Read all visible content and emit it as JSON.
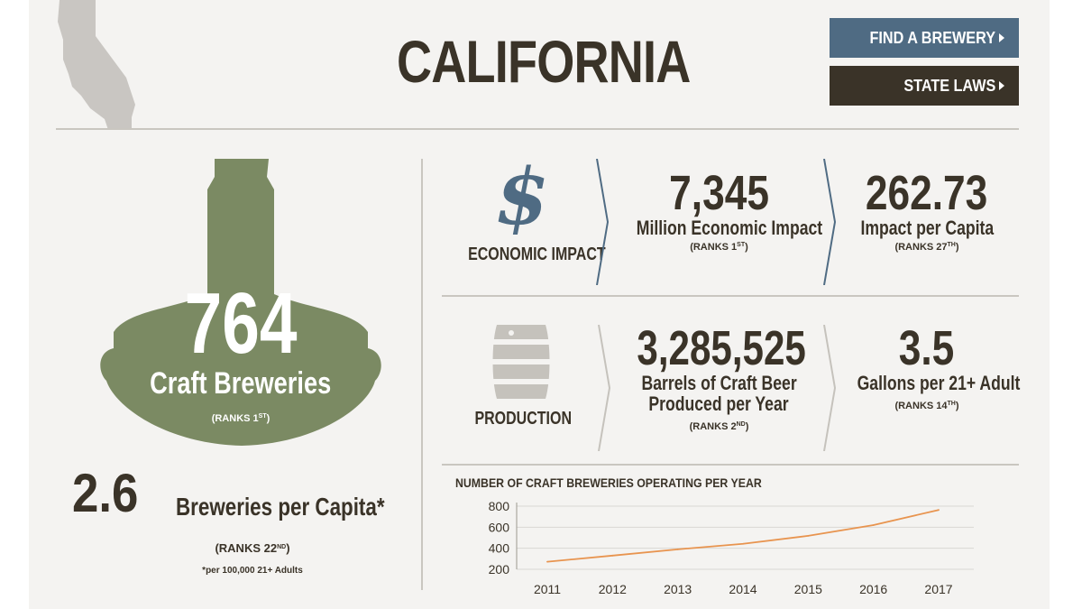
{
  "header": {
    "title": "CALIFORNIA",
    "find_button": "FIND A BREWERY",
    "laws_button": "STATE LAWS"
  },
  "breweries": {
    "count": "764",
    "label": "Craft Breweries",
    "rank_prefix": "(RANKS 1",
    "rank_suffix": "ST",
    "rank_close": ")",
    "per_capita": "2.6",
    "per_capita_label": "Breweries per Capita*",
    "per_capita_rank_prefix": "(RANKS 22",
    "per_capita_rank_suffix": "ND",
    "per_capita_rank_close": ")",
    "footnote": "*per 100,000 21+ Adults"
  },
  "economic": {
    "label": "ECONOMIC IMPACT",
    "value": "7,345",
    "value_label": "Million Economic Impact",
    "value_rank_prefix": "(RANKS 1",
    "value_rank_suffix": "ST",
    "value_rank_close": ")",
    "per_capita": "262.73",
    "per_capita_label": "Impact per Capita",
    "per_capita_rank_prefix": "(RANKS 27",
    "per_capita_rank_suffix": "TH",
    "per_capita_rank_close": ")"
  },
  "production": {
    "label": "PRODUCTION",
    "value": "3,285,525",
    "value_label_line1": "Barrels of Craft Beer",
    "value_label_line2": "Produced per Year",
    "value_rank_prefix": "(RANKS 2",
    "value_rank_suffix": "ND",
    "value_rank_close": ")",
    "per_adult": "3.5",
    "per_adult_label": "Gallons per 21+ Adult",
    "per_adult_rank_prefix": "(RANKS 14",
    "per_adult_rank_suffix": "TH",
    "per_adult_rank_close": ")"
  },
  "colors": {
    "dark": "#3a3328",
    "blue": "#4f6b83",
    "green": "#7b8a63",
    "line": "#e8944f",
    "gray": "#c9c6c0"
  },
  "chart_data": {
    "type": "line",
    "title": "NUMBER OF CRAFT BREWERIES OPERATING PER YEAR",
    "x": [
      "2011",
      "2012",
      "2013",
      "2014",
      "2015",
      "2016",
      "2017"
    ],
    "y_ticks": [
      "800",
      "600",
      "400",
      "200"
    ],
    "ylim": [
      200,
      800
    ],
    "series": [
      {
        "values": [
          272,
          330,
          390,
          442,
          518,
          620,
          764
        ]
      }
    ],
    "grid": true
  }
}
